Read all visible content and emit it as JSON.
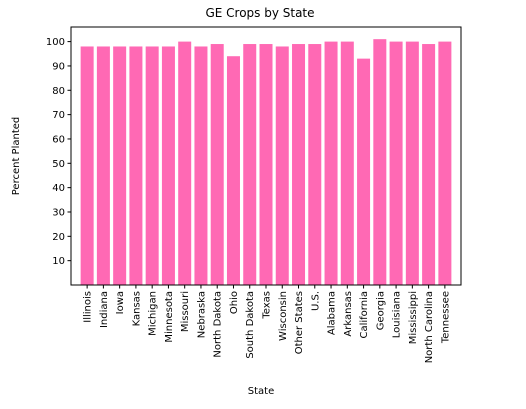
{
  "chart_data": {
    "type": "bar",
    "title": "GE Crops by State",
    "xlabel": "State",
    "ylabel": "Percent Planted",
    "categories": [
      "Illinois",
      "Indiana",
      "Iowa",
      "Kansas",
      "Michigan",
      "Minnesota",
      "Missouri",
      "Nebraska",
      "North Dakota",
      "Ohio",
      "South Dakota",
      "Texas",
      "Wisconsin",
      "Other States",
      "U.S.",
      "Alabama",
      "Arkansas",
      "California",
      "Georgia",
      "Louisiana",
      "Mississippi",
      "North Carolina",
      "Tennessee"
    ],
    "values": [
      98,
      98,
      98,
      98,
      98,
      98,
      100,
      98,
      99,
      94,
      99,
      99,
      98,
      99,
      99,
      100,
      100,
      93,
      101,
      100,
      100,
      99,
      100
    ],
    "yticks": [
      10,
      20,
      30,
      40,
      50,
      60,
      70,
      80,
      90,
      100
    ],
    "ylim": [
      0,
      106
    ],
    "bar_color": "#ff69b4",
    "grid": false,
    "legend": "none"
  }
}
